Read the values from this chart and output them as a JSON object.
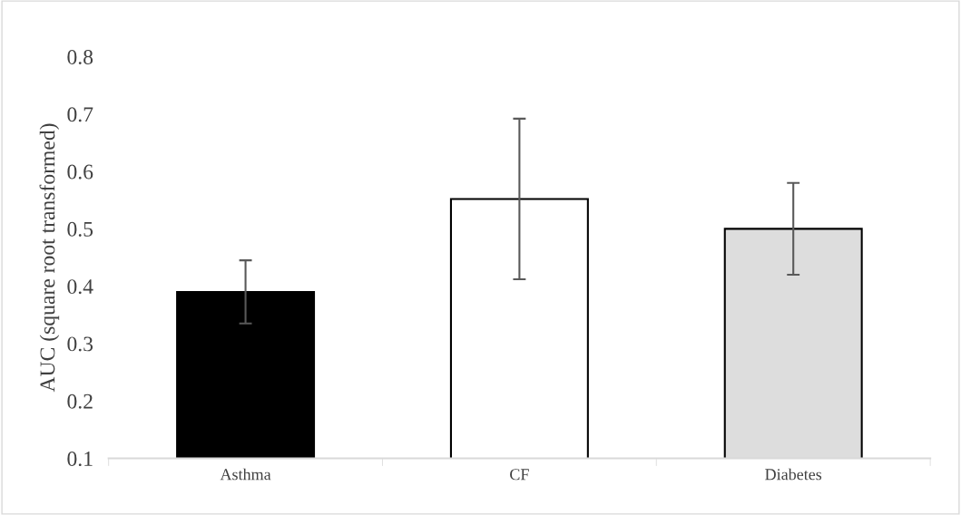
{
  "chart_data": {
    "type": "bar",
    "ylabel": "AUC (square root transformed)",
    "categories": [
      "Asthma",
      "CF",
      "Diabetes"
    ],
    "values": [
      0.39,
      0.552,
      0.5
    ],
    "errors": [
      0.055,
      0.14,
      0.08
    ],
    "colors": [
      "#000000",
      "#ffffff",
      "#dddddd"
    ],
    "ylim": [
      0.1,
      0.8
    ],
    "yticks": [
      0.1,
      0.2,
      0.3,
      0.4,
      0.5,
      0.6,
      0.7,
      0.8
    ],
    "grid": false
  }
}
